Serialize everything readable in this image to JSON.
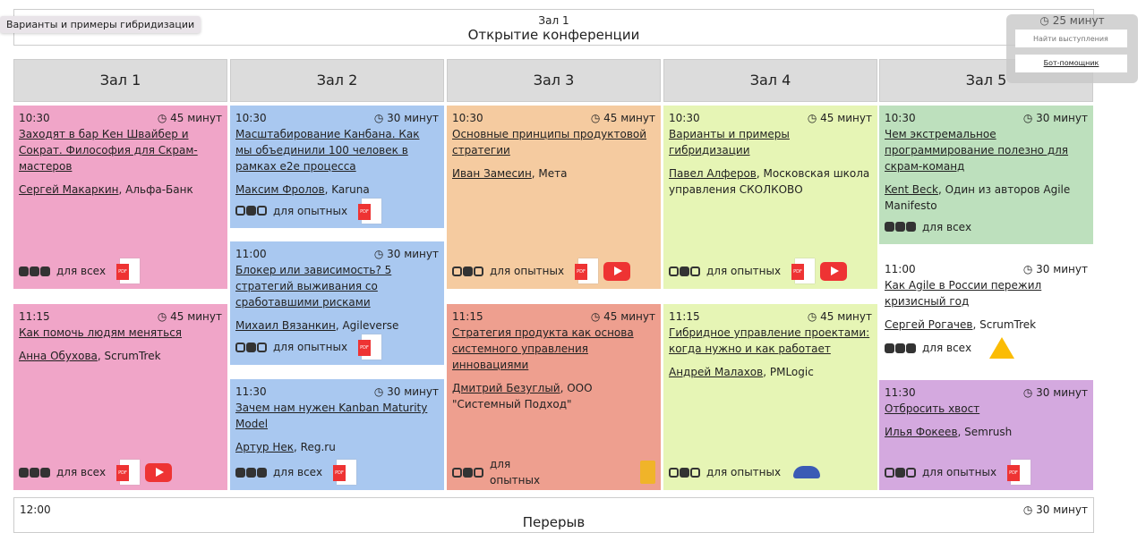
{
  "tooltip": "Варианты и примеры гибридизации",
  "opening": {
    "hall": "Зал 1",
    "title": "Открытие конференции"
  },
  "panel": {
    "duration": "25 минут",
    "search_placeholder": "Найти выступления",
    "bot": "Бот-помощник"
  },
  "halls": [
    {
      "name": "Зал 1",
      "talks": [
        {
          "time": "10:30",
          "duration": "45 минут",
          "title": "Заходят в бар Кен Швайбер и Сократ. Философия для Скрам-мастеров",
          "speaker": "Сергей Макаркин",
          "org": ", Альфа-Банк",
          "level": "для всех",
          "dots": "fff",
          "color": "#f0a5c8",
          "icons": [
            "pdf"
          ]
        },
        {
          "time": "11:15",
          "duration": "45 минут",
          "title": "Как помочь людям меняться",
          "speaker": "Анна Обухова",
          "org": ", ScrumTrek",
          "level": "для всех",
          "dots": "fff",
          "color": "#f0a5c8",
          "icons": [
            "pdf",
            "youtube"
          ]
        }
      ]
    },
    {
      "name": "Зал 2",
      "talks": [
        {
          "time": "10:30",
          "duration": "30 минут",
          "title": "Масштабирование Канбана. Как мы объединили 100 человек в рамках e2e процесса",
          "speaker": "Максим Фролов",
          "org": ", Karuna",
          "level": "для опытных",
          "dots": "ofo",
          "color": "#a9c8f0",
          "icons": [
            "pdf"
          ]
        },
        {
          "time": "11:00",
          "duration": "30 минут",
          "title": "Блокер или зависимость? 5 стратегий выживания со сработавшими рисками",
          "speaker": "Михаил Вязанкин",
          "org": ", Agileverse",
          "level": "для опытных",
          "dots": "ofo",
          "color": "#a9c8f0",
          "icons": [
            "pdf"
          ]
        },
        {
          "time": "11:30",
          "duration": "30 минут",
          "title": "Зачем нам нужен Kanban Maturity Model",
          "speaker": "Артур Нек",
          "org": ", Reg.ru",
          "level": "для всех",
          "dots": "fff",
          "color": "#a9c8f0",
          "icons": [
            "pdf"
          ]
        }
      ]
    },
    {
      "name": "Зал 3",
      "talks": [
        {
          "time": "10:30",
          "duration": "45 минут",
          "title": "Основные принципы продуктовой стратегии",
          "speaker": "Иван Замесин",
          "org": ", Мета",
          "level": "для опытных",
          "dots": "ofo",
          "color": "#f5cba0",
          "icons": [
            "pdf",
            "youtube"
          ]
        },
        {
          "time": "11:15",
          "duration": "45 минут",
          "title": "Стратегия продукта как основа системного управления инновациями",
          "speaker": "Дмитрий Безуглый",
          "org": ", ООО \"Системный Подход\"",
          "level": "для опытных",
          "dots": "ofo",
          "color": "#ee9f8f",
          "icons": [
            "slides"
          ]
        }
      ]
    },
    {
      "name": "Зал 4",
      "talks": [
        {
          "time": "10:30",
          "duration": "45 минут",
          "title": "Варианты и примеры гибридизации",
          "speaker": "Павел Алферов",
          "org": ", Московская школа управления СКОЛКОВО",
          "level": "для опытных",
          "dots": "ofo",
          "color": "#e6f5b5",
          "icons": [
            "pdf",
            "youtube"
          ]
        },
        {
          "time": "11:15",
          "duration": "45 минут",
          "title": "Гибридное управление проектами: когда нужно и как работает",
          "speaker": "Андрей Малахов",
          "org": ", PMLogic",
          "level": "для опытных",
          "dots": "ofo",
          "color": "#e6f5b5",
          "icons": [
            "hat"
          ]
        }
      ]
    },
    {
      "name": "Зал 5",
      "talks": [
        {
          "time": "10:30",
          "duration": "30 минут",
          "title": "Чем экстремальное программирование полезно для скрам-команд",
          "speaker": "Kent Beck",
          "org": ", Один из авторов Agile Manifesto",
          "level": "для всех",
          "dots": "fff",
          "color": "#bde0bd",
          "icons": []
        },
        {
          "time": "11:00",
          "duration": "30 минут",
          "title": "Как Agile в России пережил кризисный год",
          "speaker": "Сергей Рогачев",
          "org": ", ScrumTrek",
          "level": "для всех",
          "dots": "fff",
          "color": "#ffffff",
          "icons": [
            "gdrive"
          ]
        },
        {
          "time": "11:30",
          "duration": "30 минут",
          "title": "Отбросить хвост",
          "speaker": "Илья Фокеев",
          "org": ", Semrush",
          "level": "для опытных",
          "dots": "ofo",
          "color": "#d4a9df",
          "icons": [
            "pdf"
          ]
        }
      ]
    }
  ],
  "break": {
    "time": "12:00",
    "title": "Перерыв",
    "duration": "30 минут"
  }
}
